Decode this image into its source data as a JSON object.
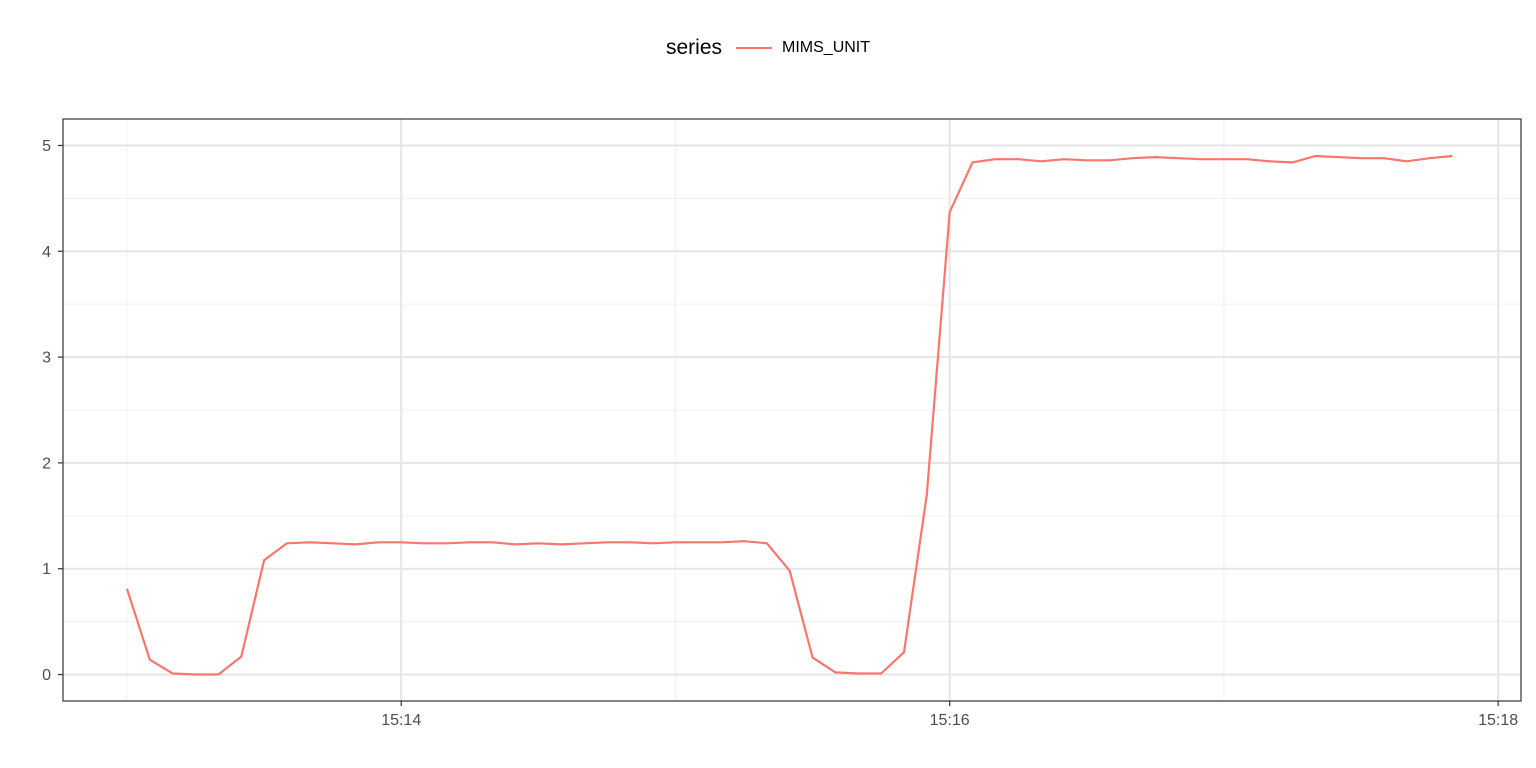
{
  "chart_data": {
    "type": "line",
    "legend": {
      "title": "series",
      "position": "top"
    },
    "series": [
      {
        "name": "MIMS_UNIT",
        "color": "#F8766D",
        "x": [
          "15:13:00",
          "15:13:05",
          "15:13:10",
          "15:13:15",
          "15:13:20",
          "15:13:25",
          "15:13:30",
          "15:13:35",
          "15:13:40",
          "15:13:45",
          "15:13:50",
          "15:13:55",
          "15:14:00",
          "15:14:05",
          "15:14:10",
          "15:14:15",
          "15:14:20",
          "15:14:25",
          "15:14:30",
          "15:14:35",
          "15:14:40",
          "15:14:45",
          "15:14:50",
          "15:14:55",
          "15:15:00",
          "15:15:05",
          "15:15:10",
          "15:15:15",
          "15:15:20",
          "15:15:25",
          "15:15:30",
          "15:15:35",
          "15:15:40",
          "15:15:45",
          "15:15:50",
          "15:15:55",
          "15:16:00",
          "15:16:05",
          "15:16:10",
          "15:16:15",
          "15:16:20",
          "15:16:25",
          "15:16:30",
          "15:16:35",
          "15:16:40",
          "15:16:45",
          "15:16:50",
          "15:16:55",
          "15:17:00",
          "15:17:05",
          "15:17:10",
          "15:17:15",
          "15:17:20",
          "15:17:25",
          "15:17:30",
          "15:17:35",
          "15:17:40",
          "15:17:45",
          "15:17:50"
        ],
        "y": [
          0.81,
          0.14,
          0.01,
          0.0,
          0.0,
          0.17,
          1.08,
          1.24,
          1.25,
          1.24,
          1.23,
          1.25,
          1.25,
          1.24,
          1.24,
          1.25,
          1.25,
          1.23,
          1.24,
          1.23,
          1.24,
          1.25,
          1.25,
          1.24,
          1.25,
          1.25,
          1.25,
          1.26,
          1.24,
          0.98,
          0.16,
          0.02,
          0.01,
          0.01,
          0.21,
          1.7,
          4.37,
          4.84,
          4.87,
          4.87,
          4.85,
          4.87,
          4.86,
          4.86,
          4.88,
          4.89,
          4.88,
          4.87,
          4.87,
          4.87,
          4.85,
          4.84,
          4.9,
          4.89,
          4.88,
          4.88,
          4.85,
          4.88,
          4.9
        ]
      }
    ],
    "x_axis": {
      "type": "time",
      "ticks": [
        "15:14",
        "15:16",
        "15:18"
      ],
      "range": [
        "15:12:46",
        "15:18:05"
      ]
    },
    "y_axis": {
      "ticks": [
        "0",
        "1",
        "2",
        "3",
        "4",
        "5"
      ],
      "range": [
        -0.25,
        5.25
      ]
    },
    "grid": true,
    "theme": "bw",
    "title": "",
    "xlabel": "",
    "ylabel": ""
  }
}
